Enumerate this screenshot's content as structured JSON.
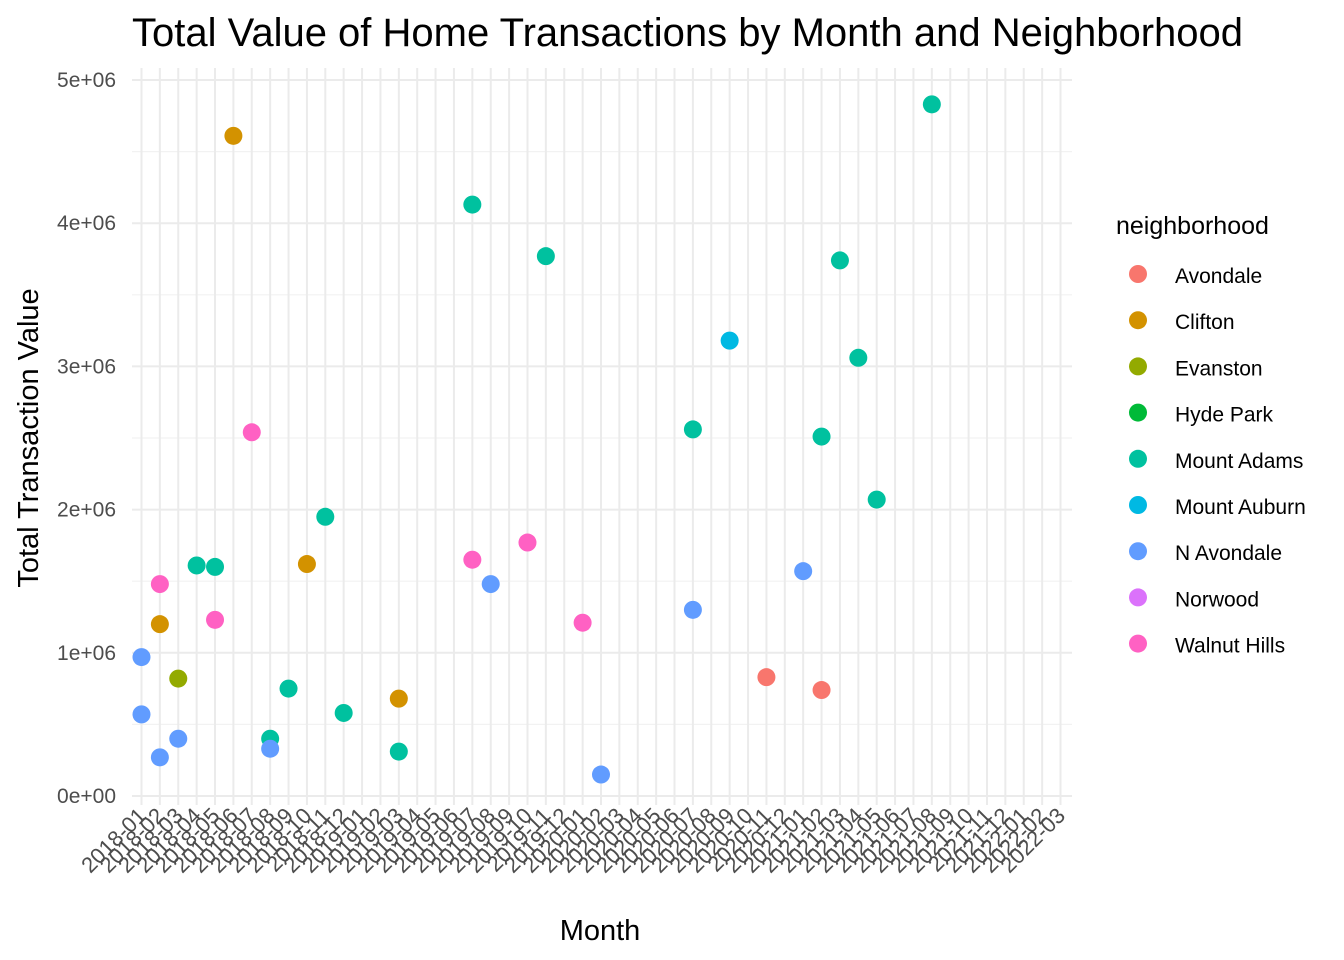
{
  "chart_data": {
    "type": "scatter",
    "title": "Total Value of Home Transactions by Month and Neighborhood",
    "xlabel": "Month",
    "ylabel": "Total Transaction Value",
    "x_categories": [
      "2018-01",
      "2018-02",
      "2018-03",
      "2018-04",
      "2018-05",
      "2018-06",
      "2018-07",
      "2018-08",
      "2018-09",
      "2018-10",
      "2018-11",
      "2018-12",
      "2019-01",
      "2019-02",
      "2019-03",
      "2019-04",
      "2019-05",
      "2019-06",
      "2019-07",
      "2019-08",
      "2019-09",
      "2019-10",
      "2019-11",
      "2019-12",
      "2020-01",
      "2020-02",
      "2020-03",
      "2020-04",
      "2020-05",
      "2020-06",
      "2020-07",
      "2020-08",
      "2020-09",
      "2020-10",
      "2020-11",
      "2020-12",
      "2021-01",
      "2021-02",
      "2021-03",
      "2021-04",
      "2021-05",
      "2021-06",
      "2021-07",
      "2021-08",
      "2021-09",
      "2021-10",
      "2021-11",
      "2021-12",
      "2022-01",
      "2022-02",
      "2022-03"
    ],
    "y_ticks": [
      {
        "value": 0,
        "label": "0e+00"
      },
      {
        "value": 1000000,
        "label": "1e+06"
      },
      {
        "value": 2000000,
        "label": "2e+06"
      },
      {
        "value": 3000000,
        "label": "3e+06"
      },
      {
        "value": 4000000,
        "label": "4e+06"
      },
      {
        "value": 5000000,
        "label": "5e+06"
      }
    ],
    "ylim": [
      -100000,
      5100000
    ],
    "grid": true,
    "legend": {
      "title": "neighborhood",
      "position": "right",
      "entries": [
        {
          "name": "Avondale",
          "color": "#F8766D"
        },
        {
          "name": "Clifton",
          "color": "#D39200"
        },
        {
          "name": "Evanston",
          "color": "#93AA00"
        },
        {
          "name": "Hyde Park",
          "color": "#00BA38"
        },
        {
          "name": "Mount Adams",
          "color": "#00C19F"
        },
        {
          "name": "Mount Auburn",
          "color": "#00B9E3"
        },
        {
          "name": "N Avondale",
          "color": "#619CFF"
        },
        {
          "name": "Norwood",
          "color": "#DB72FB"
        },
        {
          "name": "Walnut Hills",
          "color": "#FF61C3"
        }
      ]
    },
    "series": [
      {
        "name": "Avondale",
        "points": [
          [
            "2020-11",
            830000
          ],
          [
            "2021-02",
            740000
          ]
        ]
      },
      {
        "name": "Clifton",
        "points": [
          [
            "2018-02",
            1200000
          ],
          [
            "2018-06",
            4610000
          ],
          [
            "2018-10",
            1620000
          ],
          [
            "2019-03",
            680000
          ]
        ]
      },
      {
        "name": "Evanston",
        "points": [
          [
            "2018-03",
            820000
          ]
        ]
      },
      {
        "name": "Hyde Park",
        "points": []
      },
      {
        "name": "Mount Adams",
        "points": [
          [
            "2018-04",
            1610000
          ],
          [
            "2018-05",
            1600000
          ],
          [
            "2018-08",
            400000
          ],
          [
            "2018-09",
            750000
          ],
          [
            "2018-11",
            1950000
          ],
          [
            "2018-12",
            580000
          ],
          [
            "2019-03",
            310000
          ],
          [
            "2019-07",
            4130000
          ],
          [
            "2019-11",
            3770000
          ],
          [
            "2020-07",
            2560000
          ],
          [
            "2021-02",
            2510000
          ],
          [
            "2021-03",
            3740000
          ],
          [
            "2021-04",
            3060000
          ],
          [
            "2021-05",
            2070000
          ],
          [
            "2021-08",
            4830000
          ]
        ]
      },
      {
        "name": "Mount Auburn",
        "points": [
          [
            "2020-09",
            3180000
          ]
        ]
      },
      {
        "name": "N Avondale",
        "points": [
          [
            "2018-01",
            970000
          ],
          [
            "2018-01",
            570000
          ],
          [
            "2018-02",
            270000
          ],
          [
            "2018-03",
            400000
          ],
          [
            "2018-08",
            330000
          ],
          [
            "2019-08",
            1480000
          ],
          [
            "2020-02",
            150000
          ],
          [
            "2020-07",
            1300000
          ],
          [
            "2021-01",
            1570000
          ]
        ]
      },
      {
        "name": "Norwood",
        "points": []
      },
      {
        "name": "Walnut Hills",
        "points": [
          [
            "2018-02",
            1480000
          ],
          [
            "2018-05",
            1230000
          ],
          [
            "2018-07",
            2540000
          ],
          [
            "2019-07",
            1650000
          ],
          [
            "2019-10",
            1770000
          ],
          [
            "2020-01",
            1210000
          ]
        ]
      }
    ]
  }
}
